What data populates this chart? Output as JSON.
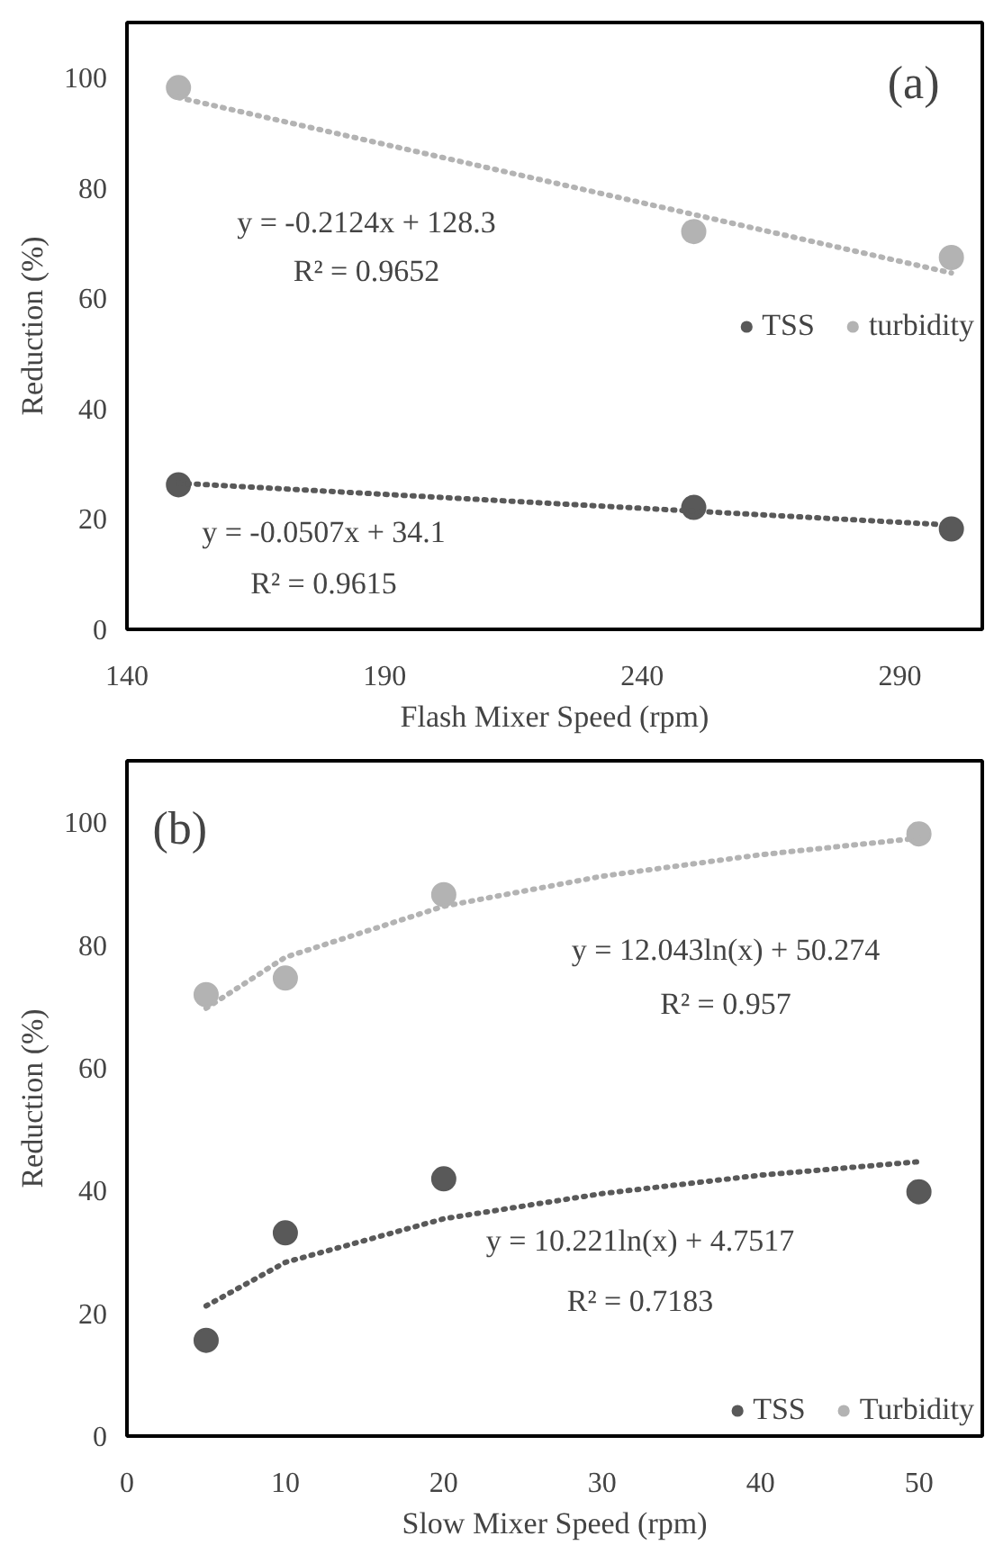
{
  "chart_data": [
    {
      "type": "scatter",
      "title": "(a)",
      "xlabel": "Flash Mixer Speed (rpm)",
      "ylabel": "Reduction (%)",
      "xlim": [
        140,
        306
      ],
      "ylim": [
        0,
        110
      ],
      "xticks": [
        140,
        190,
        240,
        290
      ],
      "yticks": [
        0,
        20,
        40,
        60,
        80,
        100
      ],
      "grid": false,
      "legend": "right",
      "series": [
        {
          "name": "TSS",
          "color": "#595959",
          "marker": "circle",
          "x": [
            150,
            250,
            300
          ],
          "values": [
            26.2,
            22.1,
            18.2
          ]
        },
        {
          "name": "turbidity",
          "color": "#b3b3b3",
          "marker": "circle",
          "x": [
            150,
            250,
            300
          ],
          "values": [
            98.2,
            72.1,
            67.4
          ]
        },
        {
          "type": "line",
          "line_style": "dotted",
          "color": "#595959",
          "x": [
            150,
            300
          ],
          "values": [
            26.5,
            18.9
          ]
        },
        {
          "type": "line",
          "line_style": "dotted",
          "color": "#b3b3b3",
          "x": [
            150,
            300
          ],
          "values": [
            96.4,
            64.6
          ]
        }
      ],
      "annotations": [
        "y = -0.2124x + 128.3",
        "R² = 0.9652",
        "y = -0.0507x + 34.1",
        "R² = 0.9615"
      ]
    },
    {
      "type": "scatter",
      "title": "(b)",
      "xlabel": "Slow Mixer Speed (rpm)",
      "ylabel": "Reduction (%)",
      "xlim": [
        0,
        54
      ],
      "ylim": [
        0,
        110
      ],
      "xticks": [
        0,
        10,
        20,
        30,
        40,
        50
      ],
      "yticks": [
        0,
        20,
        40,
        60,
        80,
        100
      ],
      "grid": false,
      "legend": "bottom right",
      "series": [
        {
          "name": "TSS",
          "color": "#595959",
          "marker": "circle",
          "x": [
            5,
            10,
            20,
            50
          ],
          "values": [
            15.6,
            33.1,
            41.9,
            39.8
          ]
        },
        {
          "name": "Turbidity",
          "color": "#b3b3b3",
          "marker": "circle",
          "x": [
            5,
            10,
            20,
            50
          ],
          "values": [
            71.9,
            74.6,
            88.2,
            98.1
          ]
        },
        {
          "type": "line",
          "line_style": "dotted",
          "color": "#595959",
          "x": [
            5,
            10,
            20,
            30,
            40,
            50
          ],
          "values": [
            21.2,
            28.3,
            35.4,
            39.5,
            42.5,
            44.7
          ]
        },
        {
          "type": "line",
          "line_style": "dotted",
          "color": "#b3b3b3",
          "x": [
            5,
            10,
            20,
            30,
            40,
            50
          ],
          "values": [
            69.7,
            78.0,
            86.3,
            91.2,
            94.7,
            97.4
          ]
        }
      ],
      "annotations": [
        "y = 12.043ln(x) + 50.274",
        "R² = 0.957",
        "y = 10.221ln(x) + 4.7517",
        "R² = 0.7183"
      ]
    }
  ]
}
